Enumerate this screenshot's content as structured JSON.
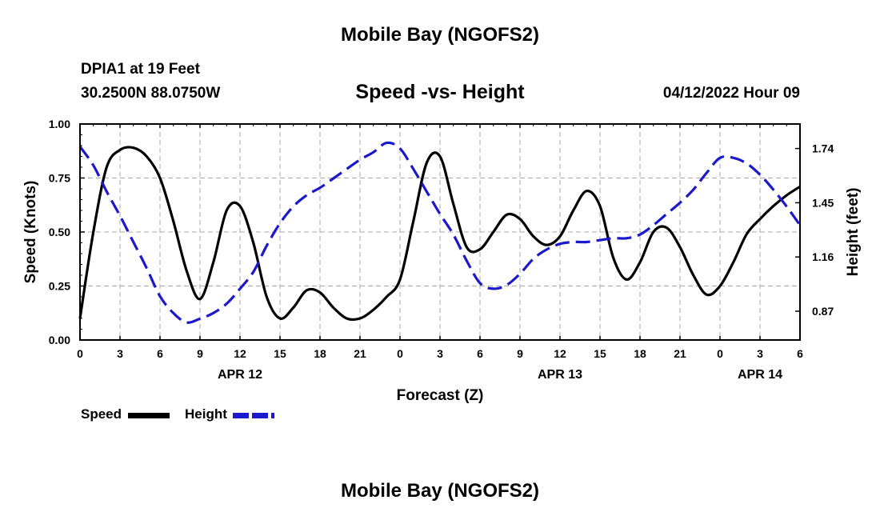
{
  "header": {
    "title": "Mobile Bay (NGOFS2)",
    "station": "DPIA1 at 19 Feet",
    "coordinates": "30.2500N  88.0750W",
    "timestamp": "04/12/2022 Hour 09"
  },
  "footer": {
    "title": "Mobile Bay (NGOFS2)"
  },
  "colors": {
    "speed": "#000000",
    "height": "#1a1acc",
    "grid": "#aaaaaa"
  },
  "chart_data": {
    "type": "line",
    "title": "Speed -vs- Height",
    "xlabel": "Forecast (Z)",
    "ylabel": "Speed (Knots)",
    "y2label": "Height (feet)",
    "x_range_hours": [
      0,
      54
    ],
    "x_tick_labels": [
      "0",
      "3",
      "6",
      "9",
      "12",
      "15",
      "18",
      "21",
      "0",
      "3",
      "6",
      "9",
      "12",
      "15",
      "18",
      "21",
      "0",
      "3",
      "6"
    ],
    "date_labels": [
      {
        "hour": 12,
        "label": "APR 12"
      },
      {
        "hour": 36,
        "label": "APR 13"
      },
      {
        "hour": 51,
        "label": "APR 14"
      }
    ],
    "ylim": [
      0,
      1.0
    ],
    "y_ticks": [
      "0.00",
      "0.25",
      "0.50",
      "0.75",
      "1.00"
    ],
    "y2lim": [
      0.716,
      1.871
    ],
    "y2_ticks": [
      "0.87",
      "1.16",
      "1.45",
      "1.74"
    ],
    "grid": true,
    "legend_position": "bottom-left",
    "series": [
      {
        "name": "Speed",
        "axis": "left",
        "style": "solid",
        "x": [
          0,
          1,
          2,
          3,
          4,
          5,
          6,
          7,
          8,
          9,
          10,
          11,
          12,
          13,
          14,
          15,
          16,
          17,
          18,
          19,
          20,
          21,
          22,
          23,
          24,
          25,
          26,
          27,
          28,
          29,
          30,
          31,
          32,
          33,
          34,
          35,
          36,
          37,
          38,
          39,
          40,
          41,
          42,
          43,
          44,
          45,
          46,
          47,
          48,
          49,
          50,
          51,
          52,
          53,
          54
        ],
        "values": [
          0.1,
          0.5,
          0.8,
          0.88,
          0.89,
          0.85,
          0.75,
          0.55,
          0.32,
          0.19,
          0.36,
          0.6,
          0.62,
          0.45,
          0.2,
          0.1,
          0.15,
          0.23,
          0.22,
          0.15,
          0.1,
          0.1,
          0.14,
          0.2,
          0.28,
          0.55,
          0.82,
          0.85,
          0.63,
          0.43,
          0.42,
          0.5,
          0.58,
          0.56,
          0.48,
          0.44,
          0.48,
          0.6,
          0.69,
          0.62,
          0.38,
          0.28,
          0.36,
          0.5,
          0.52,
          0.43,
          0.3,
          0.21,
          0.25,
          0.36,
          0.49,
          0.56,
          0.62,
          0.67,
          0.71
        ]
      },
      {
        "name": "Height",
        "axis": "right",
        "style": "dashed",
        "x": [
          0,
          1,
          2,
          3,
          4,
          5,
          6,
          7,
          8,
          9,
          10,
          11,
          12,
          13,
          14,
          15,
          16,
          17,
          18,
          19,
          20,
          21,
          22,
          23,
          24,
          25,
          26,
          27,
          28,
          29,
          30,
          31,
          32,
          33,
          34,
          35,
          36,
          37,
          38,
          39,
          40,
          41,
          42,
          43,
          44,
          45,
          46,
          47,
          48,
          49,
          50,
          51,
          52,
          53,
          54
        ],
        "values": [
          1.75,
          1.65,
          1.51,
          1.38,
          1.24,
          1.1,
          0.95,
          0.86,
          0.81,
          0.83,
          0.86,
          0.91,
          0.99,
          1.08,
          1.22,
          1.34,
          1.43,
          1.49,
          1.53,
          1.58,
          1.63,
          1.68,
          1.72,
          1.77,
          1.74,
          1.63,
          1.51,
          1.39,
          1.28,
          1.14,
          1.02,
          0.99,
          1.01,
          1.07,
          1.15,
          1.2,
          1.23,
          1.24,
          1.24,
          1.25,
          1.26,
          1.26,
          1.28,
          1.33,
          1.39,
          1.45,
          1.52,
          1.61,
          1.69,
          1.69,
          1.66,
          1.6,
          1.52,
          1.43,
          1.33
        ]
      }
    ]
  },
  "legend": {
    "speed_label": "Speed",
    "height_label": "Height"
  }
}
